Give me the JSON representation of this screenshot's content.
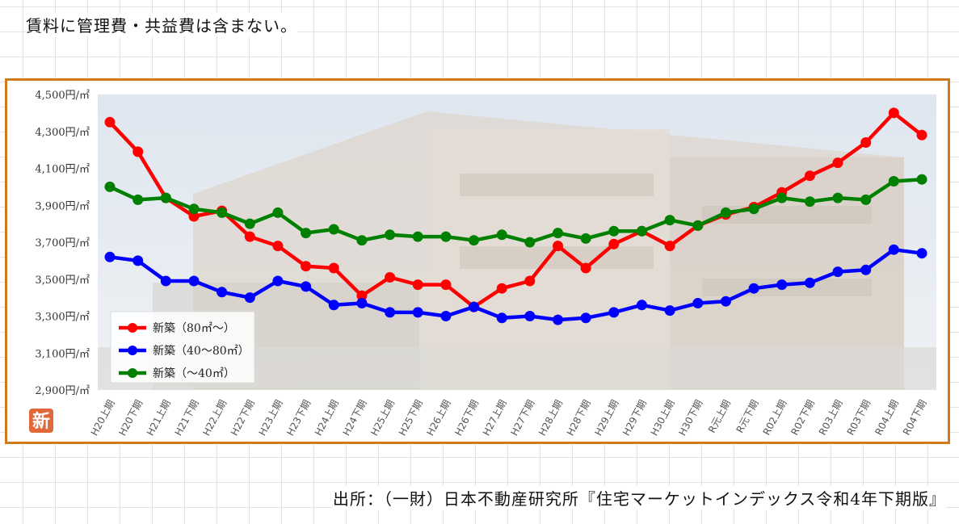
{
  "note": "賃料に管理費・共益費は含まない。",
  "source": "出所：（一財）日本不動産研究所『住宅マーケットインデックス令和4年下期版』",
  "logo": {
    "text": "新",
    "color": "#e0683a"
  },
  "colors": {
    "frame": "#d07a1e"
  },
  "chart_data": {
    "type": "line",
    "title": "",
    "xlabel": "",
    "ylabel": "",
    "y_unit": "円/㎡",
    "ylim": [
      2900,
      4500
    ],
    "yticks": [
      {
        "value": 2900,
        "label": "2,900円/㎡"
      },
      {
        "value": 3100,
        "label": "3,100円/㎡"
      },
      {
        "value": 3300,
        "label": "3,300円/㎡"
      },
      {
        "value": 3500,
        "label": "3,500円/㎡"
      },
      {
        "value": 3700,
        "label": "3,700円/㎡"
      },
      {
        "value": 3900,
        "label": "3,900円/㎡"
      },
      {
        "value": 4100,
        "label": "4,100円/㎡"
      },
      {
        "value": 4300,
        "label": "4,300円/㎡"
      },
      {
        "value": 4500,
        "label": "4,500円/㎡"
      }
    ],
    "grid": false,
    "legend_position": "bottom-left",
    "categories": [
      "H20上期",
      "H20下期",
      "H21上期",
      "H21下期",
      "H22上期",
      "H22下期",
      "H23上期",
      "H23下期",
      "H24上期",
      "H24下期",
      "H25上期",
      "H25下期",
      "H26上期",
      "H26下期",
      "H27上期",
      "H27下期",
      "H28上期",
      "H28下期",
      "H29上期",
      "H29下期",
      "H30上期",
      "H30下期",
      "R元上期",
      "R元下期",
      "R02上期",
      "R02下期",
      "R03上期",
      "R03下期",
      "R04上期",
      "R04下期"
    ],
    "series": [
      {
        "name": "新築（80㎡～）",
        "color": "#ff0000",
        "values": [
          4350,
          4190,
          3940,
          3840,
          3870,
          3730,
          3680,
          3570,
          3560,
          3410,
          3510,
          3470,
          3470,
          3350,
          3450,
          3490,
          3680,
          3560,
          3690,
          3760,
          3680,
          3790,
          3850,
          3890,
          3970,
          4060,
          4130,
          4240,
          4400,
          4280
        ]
      },
      {
        "name": "新築（40～80㎡）",
        "color": "#0000ff",
        "values": [
          3620,
          3600,
          3490,
          3490,
          3430,
          3400,
          3490,
          3460,
          3360,
          3370,
          3320,
          3320,
          3300,
          3350,
          3290,
          3300,
          3280,
          3290,
          3320,
          3360,
          3330,
          3370,
          3380,
          3450,
          3470,
          3480,
          3540,
          3550,
          3660,
          3640
        ]
      },
      {
        "name": "新築（～40㎡）",
        "color": "#008000",
        "values": [
          4000,
          3930,
          3940,
          3880,
          3860,
          3800,
          3860,
          3750,
          3770,
          3710,
          3740,
          3730,
          3730,
          3710,
          3740,
          3700,
          3750,
          3720,
          3760,
          3760,
          3820,
          3790,
          3860,
          3880,
          3940,
          3920,
          3940,
          3930,
          4030,
          4040
        ]
      }
    ]
  }
}
